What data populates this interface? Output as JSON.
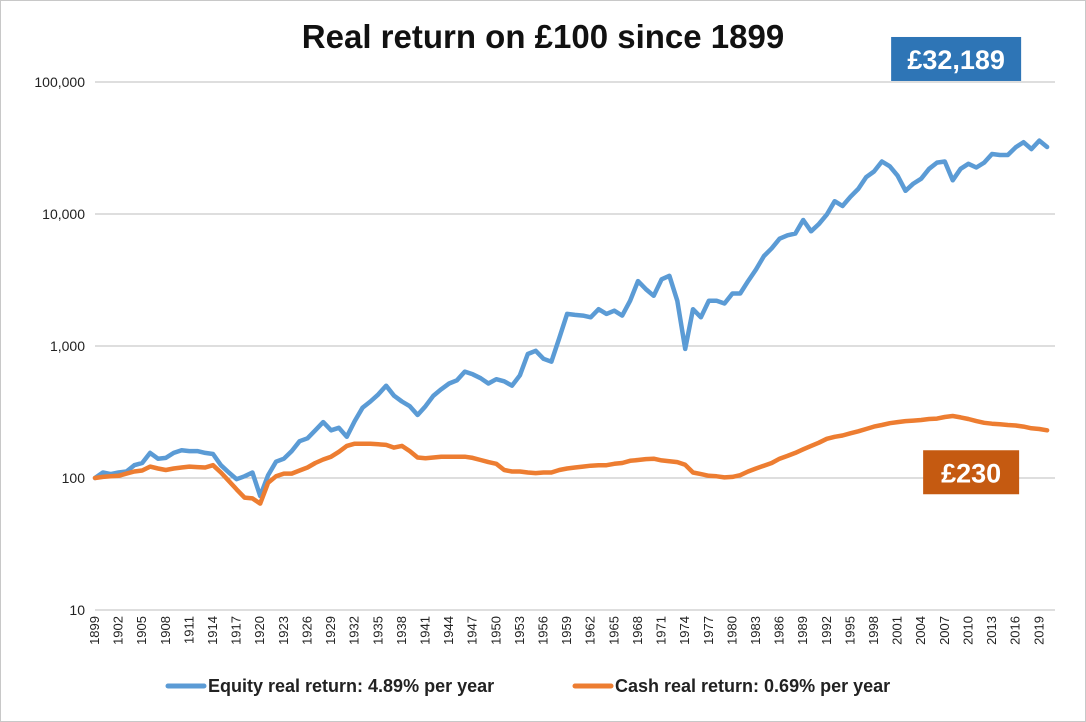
{
  "chart_data": {
    "type": "line",
    "title": "Real return on £100 since 1899",
    "xlabel": "",
    "ylabel": "",
    "y_scale": "log",
    "ylim": [
      10,
      100000
    ],
    "y_ticks": [
      "10",
      "100",
      "1,000",
      "10,000",
      "100,000"
    ],
    "xlim": [
      1899,
      2021
    ],
    "x_tick_labels": [
      "1899",
      "1902",
      "1905",
      "1908",
      "1911",
      "1914",
      "1917",
      "1920",
      "1923",
      "1926",
      "1929",
      "1932",
      "1935",
      "1938",
      "1941",
      "1944",
      "1947",
      "1950",
      "1953",
      "1956",
      "1959",
      "1962",
      "1965",
      "1968",
      "1971",
      "1974",
      "1977",
      "1980",
      "1983",
      "1986",
      "1989",
      "1992",
      "1995",
      "1998",
      "2001",
      "2004",
      "2007",
      "2010",
      "2013",
      "2016",
      "2019"
    ],
    "grid": "horizontal",
    "legend_position": "bottom",
    "series": [
      {
        "name": "Equity real return: 4.89% per year",
        "color": "#5b9bd5",
        "end_label": "£32,189",
        "label_color": "#2e75b6",
        "points": [
          [
            1899,
            100
          ],
          [
            1900,
            110
          ],
          [
            1901,
            107
          ],
          [
            1902,
            110
          ],
          [
            1903,
            112
          ],
          [
            1904,
            125
          ],
          [
            1905,
            130
          ],
          [
            1906,
            155
          ],
          [
            1907,
            140
          ],
          [
            1908,
            142
          ],
          [
            1909,
            155
          ],
          [
            1910,
            162
          ],
          [
            1911,
            160
          ],
          [
            1912,
            160
          ],
          [
            1913,
            155
          ],
          [
            1914,
            152
          ],
          [
            1915,
            125
          ],
          [
            1916,
            110
          ],
          [
            1917,
            98
          ],
          [
            1918,
            103
          ],
          [
            1919,
            110
          ],
          [
            1920,
            73
          ],
          [
            1921,
            105
          ],
          [
            1922,
            133
          ],
          [
            1923,
            140
          ],
          [
            1924,
            160
          ],
          [
            1925,
            190
          ],
          [
            1926,
            200
          ],
          [
            1927,
            230
          ],
          [
            1928,
            265
          ],
          [
            1929,
            230
          ],
          [
            1930,
            240
          ],
          [
            1931,
            205
          ],
          [
            1932,
            270
          ],
          [
            1933,
            340
          ],
          [
            1934,
            380
          ],
          [
            1935,
            430
          ],
          [
            1936,
            500
          ],
          [
            1937,
            420
          ],
          [
            1938,
            380
          ],
          [
            1939,
            350
          ],
          [
            1940,
            300
          ],
          [
            1941,
            350
          ],
          [
            1942,
            420
          ],
          [
            1943,
            470
          ],
          [
            1944,
            520
          ],
          [
            1945,
            550
          ],
          [
            1946,
            640
          ],
          [
            1947,
            610
          ],
          [
            1948,
            570
          ],
          [
            1949,
            520
          ],
          [
            1950,
            560
          ],
          [
            1951,
            540
          ],
          [
            1952,
            500
          ],
          [
            1953,
            600
          ],
          [
            1954,
            870
          ],
          [
            1955,
            920
          ],
          [
            1956,
            800
          ],
          [
            1957,
            760
          ],
          [
            1958,
            1150
          ],
          [
            1959,
            1750
          ],
          [
            1960,
            1720
          ],
          [
            1961,
            1700
          ],
          [
            1962,
            1650
          ],
          [
            1963,
            1900
          ],
          [
            1964,
            1750
          ],
          [
            1965,
            1850
          ],
          [
            1966,
            1700
          ],
          [
            1967,
            2200
          ],
          [
            1968,
            3100
          ],
          [
            1969,
            2700
          ],
          [
            1970,
            2400
          ],
          [
            1971,
            3200
          ],
          [
            1972,
            3400
          ],
          [
            1973,
            2200
          ],
          [
            1974,
            950
          ],
          [
            1975,
            1900
          ],
          [
            1976,
            1650
          ],
          [
            1977,
            2200
          ],
          [
            1978,
            2200
          ],
          [
            1979,
            2100
          ],
          [
            1980,
            2500
          ],
          [
            1981,
            2500
          ],
          [
            1982,
            3100
          ],
          [
            1983,
            3800
          ],
          [
            1984,
            4800
          ],
          [
            1985,
            5500
          ],
          [
            1986,
            6500
          ],
          [
            1987,
            6900
          ],
          [
            1988,
            7100
          ],
          [
            1989,
            9000
          ],
          [
            1990,
            7400
          ],
          [
            1991,
            8400
          ],
          [
            1992,
            9900
          ],
          [
            1993,
            12500
          ],
          [
            1994,
            11500
          ],
          [
            1995,
            13500
          ],
          [
            1996,
            15500
          ],
          [
            1997,
            19000
          ],
          [
            1998,
            21000
          ],
          [
            1999,
            25000
          ],
          [
            2000,
            23000
          ],
          [
            2001,
            19500
          ],
          [
            2002,
            15000
          ],
          [
            2003,
            17000
          ],
          [
            2004,
            18500
          ],
          [
            2005,
            22000
          ],
          [
            2006,
            24500
          ],
          [
            2007,
            25000
          ],
          [
            2008,
            18000
          ],
          [
            2009,
            22000
          ],
          [
            2010,
            24000
          ],
          [
            2011,
            22500
          ],
          [
            2012,
            24500
          ],
          [
            2013,
            28500
          ],
          [
            2014,
            28000
          ],
          [
            2015,
            28000
          ],
          [
            2016,
            32000
          ],
          [
            2017,
            35000
          ],
          [
            2018,
            31000
          ],
          [
            2019,
            36000
          ],
          [
            2020,
            32189
          ]
        ]
      },
      {
        "name": "Cash real return: 0.69% per year",
        "color": "#ed7d31",
        "end_label": "£230",
        "label_color": "#c55a11",
        "points": [
          [
            1899,
            100
          ],
          [
            1900,
            102
          ],
          [
            1901,
            103
          ],
          [
            1902,
            104
          ],
          [
            1903,
            108
          ],
          [
            1904,
            112
          ],
          [
            1905,
            114
          ],
          [
            1906,
            122
          ],
          [
            1907,
            118
          ],
          [
            1908,
            115
          ],
          [
            1909,
            118
          ],
          [
            1910,
            120
          ],
          [
            1911,
            122
          ],
          [
            1912,
            121
          ],
          [
            1913,
            120
          ],
          [
            1914,
            125
          ],
          [
            1915,
            110
          ],
          [
            1916,
            95
          ],
          [
            1917,
            82
          ],
          [
            1918,
            71
          ],
          [
            1919,
            70
          ],
          [
            1920,
            64
          ],
          [
            1921,
            92
          ],
          [
            1922,
            103
          ],
          [
            1923,
            108
          ],
          [
            1924,
            108
          ],
          [
            1925,
            114
          ],
          [
            1926,
            120
          ],
          [
            1927,
            130
          ],
          [
            1928,
            138
          ],
          [
            1929,
            145
          ],
          [
            1930,
            158
          ],
          [
            1931,
            175
          ],
          [
            1932,
            182
          ],
          [
            1933,
            182
          ],
          [
            1934,
            182
          ],
          [
            1935,
            180
          ],
          [
            1936,
            178
          ],
          [
            1937,
            170
          ],
          [
            1938,
            175
          ],
          [
            1939,
            160
          ],
          [
            1940,
            143
          ],
          [
            1941,
            141
          ],
          [
            1942,
            143
          ],
          [
            1943,
            145
          ],
          [
            1944,
            145
          ],
          [
            1945,
            145
          ],
          [
            1946,
            145
          ],
          [
            1947,
            142
          ],
          [
            1948,
            137
          ],
          [
            1949,
            132
          ],
          [
            1950,
            128
          ],
          [
            1951,
            115
          ],
          [
            1952,
            112
          ],
          [
            1953,
            112
          ],
          [
            1954,
            110
          ],
          [
            1955,
            109
          ],
          [
            1956,
            110
          ],
          [
            1957,
            110
          ],
          [
            1958,
            115
          ],
          [
            1959,
            118
          ],
          [
            1960,
            120
          ],
          [
            1961,
            122
          ],
          [
            1962,
            124
          ],
          [
            1963,
            125
          ],
          [
            1964,
            125
          ],
          [
            1965,
            128
          ],
          [
            1966,
            130
          ],
          [
            1967,
            135
          ],
          [
            1968,
            137
          ],
          [
            1969,
            139
          ],
          [
            1970,
            140
          ],
          [
            1971,
            136
          ],
          [
            1972,
            134
          ],
          [
            1973,
            132
          ],
          [
            1974,
            126
          ],
          [
            1975,
            110
          ],
          [
            1976,
            107
          ],
          [
            1977,
            104
          ],
          [
            1978,
            103
          ],
          [
            1979,
            101
          ],
          [
            1980,
            102
          ],
          [
            1981,
            105
          ],
          [
            1982,
            112
          ],
          [
            1983,
            118
          ],
          [
            1984,
            124
          ],
          [
            1985,
            130
          ],
          [
            1986,
            140
          ],
          [
            1987,
            147
          ],
          [
            1988,
            155
          ],
          [
            1989,
            165
          ],
          [
            1990,
            175
          ],
          [
            1991,
            185
          ],
          [
            1992,
            198
          ],
          [
            1993,
            205
          ],
          [
            1994,
            210
          ],
          [
            1995,
            218
          ],
          [
            1996,
            226
          ],
          [
            1997,
            235
          ],
          [
            1998,
            245
          ],
          [
            1999,
            252
          ],
          [
            2000,
            260
          ],
          [
            2001,
            265
          ],
          [
            2002,
            270
          ],
          [
            2003,
            272
          ],
          [
            2004,
            275
          ],
          [
            2005,
            280
          ],
          [
            2006,
            282
          ],
          [
            2007,
            290
          ],
          [
            2008,
            295
          ],
          [
            2009,
            288
          ],
          [
            2010,
            280
          ],
          [
            2011,
            270
          ],
          [
            2012,
            262
          ],
          [
            2013,
            258
          ],
          [
            2014,
            255
          ],
          [
            2015,
            252
          ],
          [
            2016,
            250
          ],
          [
            2017,
            245
          ],
          [
            2018,
            238
          ],
          [
            2019,
            235
          ],
          [
            2020,
            230
          ]
        ]
      }
    ]
  }
}
